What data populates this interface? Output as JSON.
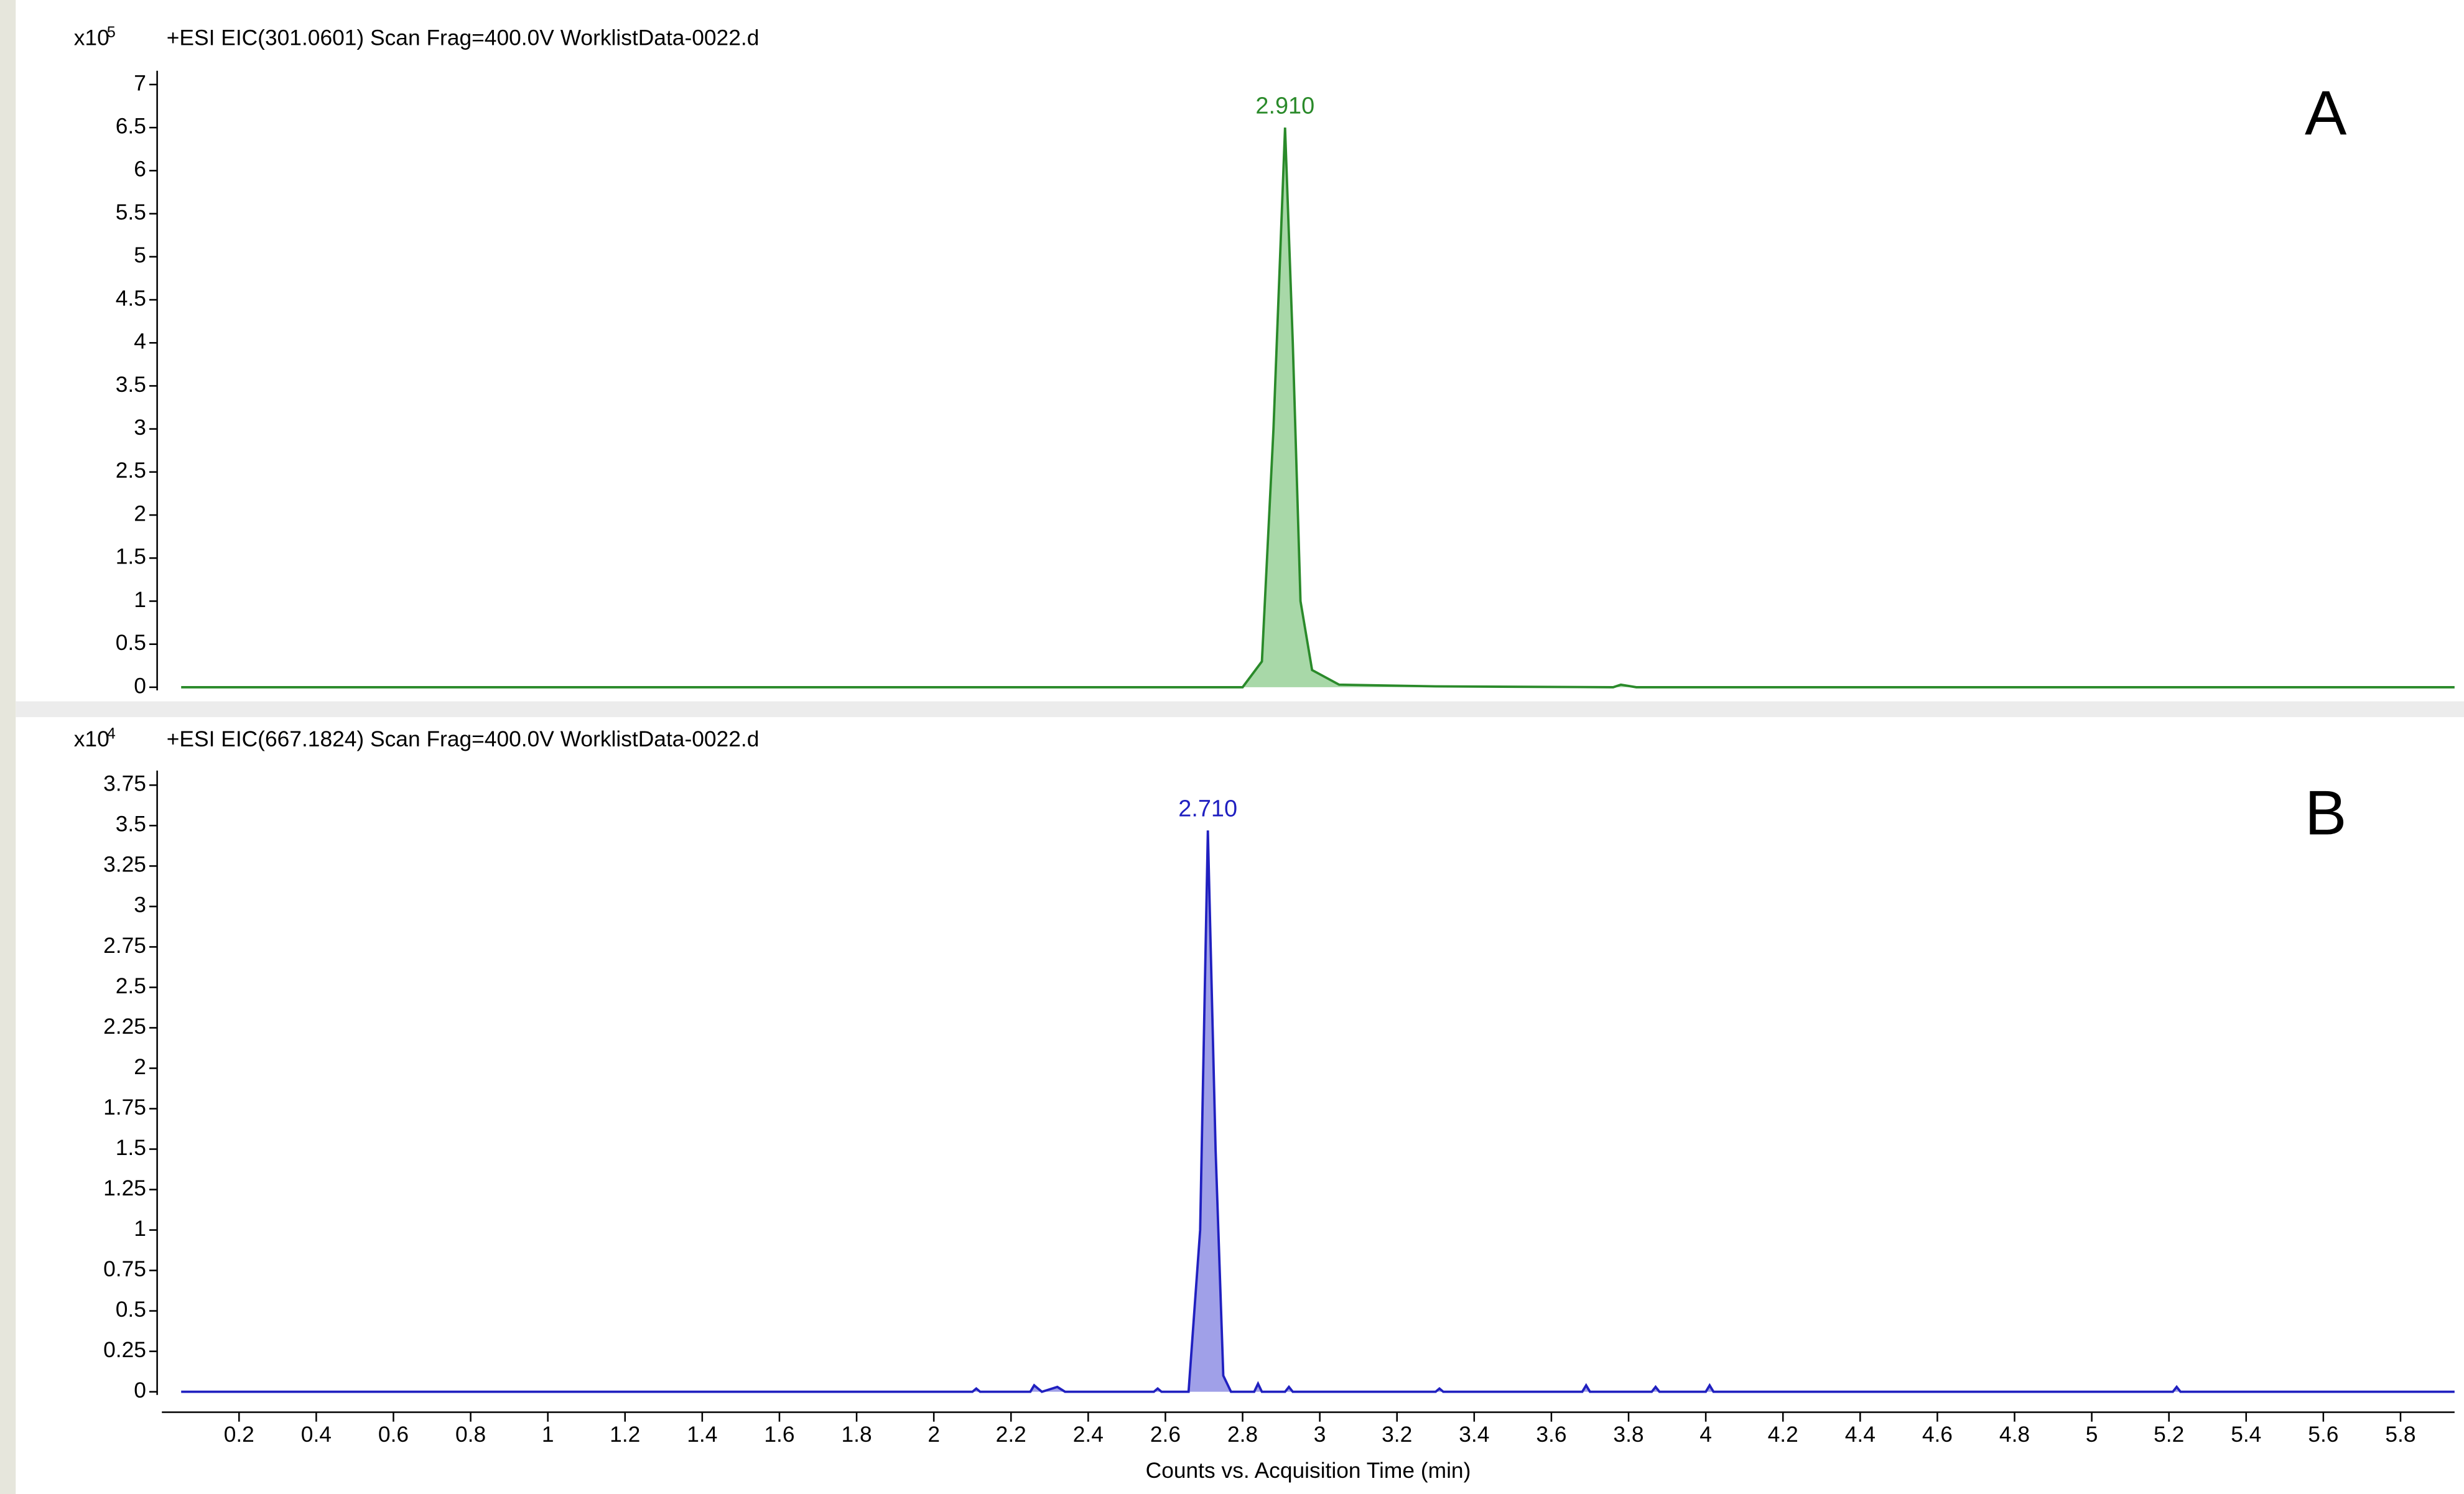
{
  "chart_data": [
    {
      "type": "line",
      "title": "+ESI EIC(301.0601) Scan Frag=400.0V WorklistData-0022.d",
      "y_multiplier": {
        "base": "x10",
        "exponent": "5"
      },
      "panel_label": "A",
      "x": [
        0.05,
        2.8,
        2.85,
        2.88,
        2.91,
        2.93,
        2.95,
        2.98,
        3.05,
        3.3,
        3.76,
        3.78,
        3.82,
        5.94
      ],
      "series": [
        {
          "name": "EIC 301.0601",
          "color": "#2a8a2a",
          "fill": "#a8d8a8",
          "values": [
            0,
            0,
            0.3,
            3.0,
            6.5,
            4.0,
            1.0,
            0.2,
            0.03,
            0.01,
            0,
            0.03,
            0,
            0
          ]
        }
      ],
      "peak_label": {
        "x": 2.91,
        "y": 6.5,
        "label": "2.910"
      },
      "xlim": [
        0,
        5.94
      ],
      "ylim": [
        0,
        7.16
      ],
      "yticks": [
        0,
        0.5,
        1,
        1.5,
        2,
        2.5,
        3,
        3.5,
        4,
        4.5,
        5,
        5.5,
        6,
        6.5,
        7
      ]
    },
    {
      "type": "line",
      "title": "+ESI EIC(667.1824) Scan Frag=400.0V WorklistData-0022.d",
      "y_multiplier": {
        "base": "x10",
        "exponent": "4"
      },
      "panel_label": "B",
      "x_label": "Counts vs. Acquisition Time (min)",
      "x": [
        0.05,
        2.1,
        2.11,
        2.12,
        2.25,
        2.26,
        2.28,
        2.32,
        2.34,
        2.57,
        2.58,
        2.59,
        2.66,
        2.69,
        2.71,
        2.73,
        2.75,
        2.77,
        2.83,
        2.84,
        2.85,
        2.91,
        2.92,
        2.93,
        3.3,
        3.31,
        3.32,
        3.68,
        3.69,
        3.7,
        3.86,
        3.87,
        3.88,
        4.0,
        4.01,
        4.02,
        5.21,
        5.22,
        5.23,
        5.94
      ],
      "series": [
        {
          "name": "EIC 667.1824",
          "color": "#2020c0",
          "fill": "#a0a0e8",
          "values": [
            0,
            0,
            0.02,
            0,
            0,
            0.04,
            0,
            0.03,
            0,
            0,
            0.02,
            0,
            0,
            1.0,
            3.47,
            1.5,
            0.1,
            0,
            0,
            0.05,
            0,
            0,
            0.03,
            0,
            0,
            0.02,
            0,
            0,
            0.04,
            0,
            0,
            0.03,
            0,
            0,
            0.04,
            0,
            0,
            0.03,
            0,
            0
          ]
        }
      ],
      "peak_label": {
        "x": 2.71,
        "y": 3.47,
        "label": "2.710"
      },
      "xlim": [
        0,
        5.94
      ],
      "ylim": [
        0,
        3.84
      ],
      "yticks": [
        0,
        0.25,
        0.5,
        0.75,
        1,
        1.25,
        1.5,
        1.75,
        2,
        2.25,
        2.5,
        2.75,
        3,
        3.25,
        3.5,
        3.75
      ],
      "xticks": [
        0.2,
        0.4,
        0.6,
        0.8,
        1,
        1.2,
        1.4,
        1.6,
        1.8,
        2,
        2.2,
        2.4,
        2.6,
        2.8,
        3,
        3.2,
        3.4,
        3.6,
        3.8,
        4,
        4.2,
        4.4,
        4.6,
        4.8,
        5,
        5.2,
        5.4,
        5.6,
        5.8
      ]
    }
  ]
}
